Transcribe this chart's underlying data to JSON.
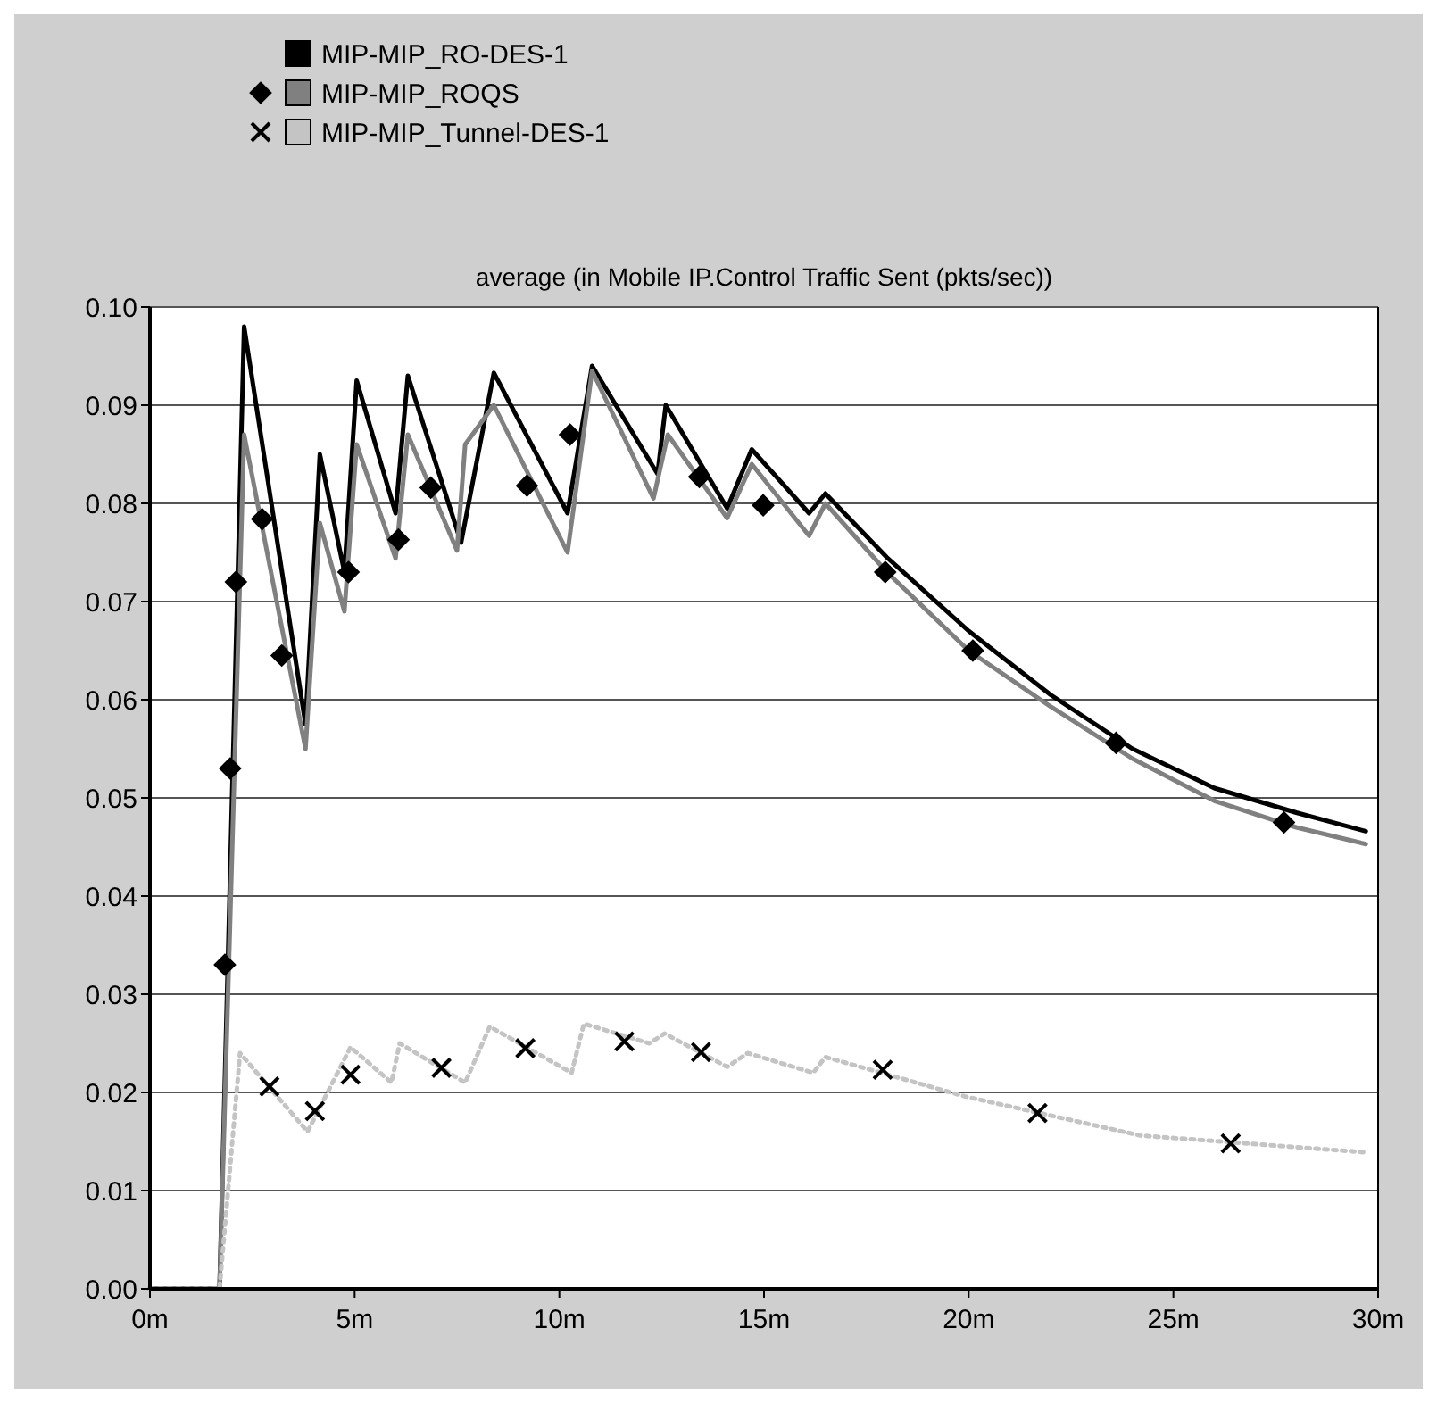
{
  "chart_data": {
    "type": "line",
    "title": "average (in Mobile IP.Control Traffic Sent (pkts/sec))",
    "xlim": [
      0,
      30
    ],
    "xticks": [
      {
        "value": 0,
        "label": "0m"
      },
      {
        "value": 5,
        "label": "5m"
      },
      {
        "value": 10,
        "label": "10m"
      },
      {
        "value": 15,
        "label": "15m"
      },
      {
        "value": 20,
        "label": "20m"
      },
      {
        "value": 25,
        "label": "25m"
      },
      {
        "value": 30,
        "label": "30m"
      }
    ],
    "ylim": [
      0,
      0.1
    ],
    "yticks": [
      {
        "value": 0,
        "label": "0.00"
      },
      {
        "value": 0.01,
        "label": "0.01"
      },
      {
        "value": 0.02,
        "label": "0.02"
      },
      {
        "value": 0.03,
        "label": "0.03"
      },
      {
        "value": 0.04,
        "label": "0.04"
      },
      {
        "value": 0.05,
        "label": "0.05"
      },
      {
        "value": 0.06,
        "label": "0.06"
      },
      {
        "value": 0.07,
        "label": "0.07"
      },
      {
        "value": 0.08,
        "label": "0.08"
      },
      {
        "value": 0.09,
        "label": "0.09"
      },
      {
        "value": 0.1,
        "label": "0.10"
      }
    ],
    "grid": "y",
    "legend": "top left",
    "series": [
      {
        "name": "MIP-MIP_RO-DES-1",
        "color": "#000000",
        "marker": "none",
        "line_style": "solid",
        "x": [
          0,
          1.7,
          2.3,
          3.8,
          4.15,
          4.75,
          5.05,
          6.0,
          6.3,
          7.6,
          8.4,
          10.2,
          10.8,
          12.4,
          12.6,
          14.1,
          14.7,
          16.1,
          16.5,
          18,
          20,
          22,
          24,
          26,
          28,
          29.7
        ],
        "values": [
          0,
          0,
          0.098,
          0.0575,
          0.085,
          0.073,
          0.0925,
          0.079,
          0.093,
          0.076,
          0.0933,
          0.079,
          0.094,
          0.083,
          0.09,
          0.0795,
          0.0855,
          0.079,
          0.081,
          0.0745,
          0.067,
          0.0605,
          0.055,
          0.051,
          0.0485,
          0.0466
        ]
      },
      {
        "name": "MIP-MIP_ROQS",
        "color": "#808080",
        "marker": "none",
        "line_style": "solid",
        "x": [
          0,
          1.7,
          2.3,
          3.8,
          4.15,
          4.75,
          5.05,
          6.0,
          6.3,
          7.5,
          7.7,
          8.4,
          10.2,
          10.8,
          12.3,
          12.65,
          14.1,
          14.7,
          16.1,
          16.5,
          18,
          20,
          22,
          24,
          26,
          28,
          29.7
        ],
        "values": [
          0,
          0,
          0.087,
          0.055,
          0.078,
          0.069,
          0.086,
          0.0744,
          0.087,
          0.0752,
          0.086,
          0.09,
          0.075,
          0.0935,
          0.0805,
          0.087,
          0.0785,
          0.084,
          0.0767,
          0.08,
          0.073,
          0.065,
          0.0593,
          0.054,
          0.0497,
          0.047,
          0.0453
        ]
      },
      {
        "type": "scatter",
        "color": "#000000",
        "marker": "diamond",
        "x": [
          1.83,
          1.96,
          2.1,
          2.74,
          3.22,
          4.85,
          6.07,
          6.86,
          9.21,
          10.26,
          13.42,
          14.98,
          17.96,
          20.1,
          23.6,
          27.7
        ],
        "values": [
          0.033,
          0.053,
          0.072,
          0.0784,
          0.0645,
          0.073,
          0.0763,
          0.0816,
          0.0818,
          0.087,
          0.0827,
          0.0798,
          0.073,
          0.065,
          0.0556,
          0.0475
        ]
      },
      {
        "name": "MIP-MIP_Tunnel-DES-1",
        "color": "#c4c4c4",
        "marker": "none",
        "line_style": "dotted",
        "x": [
          0,
          1.7,
          2.2,
          3.85,
          4.9,
          5.9,
          6.1,
          7.7,
          8.3,
          10.3,
          10.6,
          12.2,
          12.57,
          14.1,
          14.6,
          16.2,
          16.5,
          19.9,
          24.2,
          29.7
        ],
        "values": [
          0,
          0,
          0.024,
          0.016,
          0.0246,
          0.021,
          0.025,
          0.021,
          0.0267,
          0.022,
          0.027,
          0.025,
          0.026,
          0.0226,
          0.024,
          0.022,
          0.0236,
          0.0196,
          0.0156,
          0.0139
        ]
      },
      {
        "type": "scatter",
        "color": "#000000",
        "marker": "cross",
        "x": [
          2.92,
          4.03,
          4.9,
          7.12,
          9.17,
          11.59,
          13.46,
          17.9,
          21.68,
          26.4
        ],
        "values": [
          0.0206,
          0.0181,
          0.0218,
          0.0225,
          0.0245,
          0.0252,
          0.0241,
          0.0223,
          0.0179,
          0.0148
        ]
      }
    ]
  }
}
